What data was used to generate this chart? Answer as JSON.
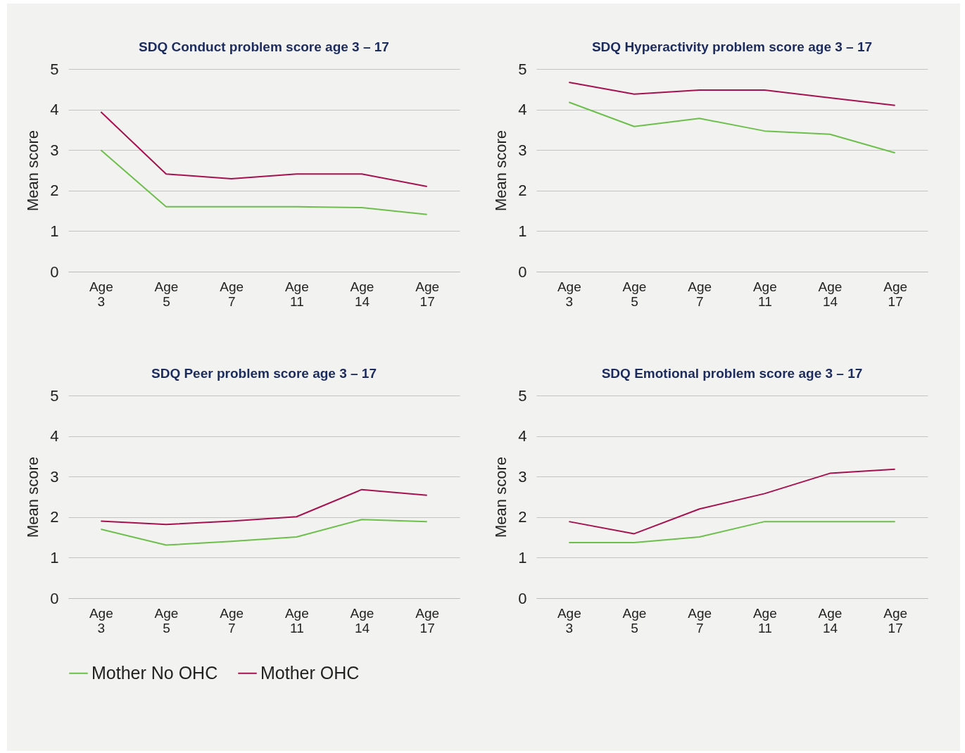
{
  "chart_data": [
    {
      "type": "line",
      "title": "SDQ Conduct problem score age 3 – 17",
      "ylabel": "Mean score",
      "categories": [
        "Age 3",
        "Age 5",
        "Age 7",
        "Age 11",
        "Age 14",
        "Age 17"
      ],
      "ylim": [
        0,
        5
      ],
      "yticks": [
        0,
        1,
        2,
        3,
        4,
        5
      ],
      "grid": "y",
      "legend": false,
      "series": [
        {
          "color": "#6dbf4b",
          "values": [
            3.0,
            1.6,
            1.6,
            1.6,
            1.58,
            1.41
          ]
        },
        {
          "color": "#a6124f",
          "values": [
            3.94,
            2.41,
            2.29,
            2.41,
            2.41,
            2.1
          ]
        }
      ]
    },
    {
      "type": "line",
      "title": "SDQ Hyperactivity problem score age 3 – 17",
      "ylabel": "Mean score",
      "categories": [
        "Age 3",
        "Age 5",
        "Age 7",
        "Age 11",
        "Age 14",
        "Age 17"
      ],
      "ylim": [
        0,
        5
      ],
      "yticks": [
        0,
        1,
        2,
        3,
        4,
        5
      ],
      "grid": "y",
      "legend": false,
      "series": [
        {
          "color": "#6dbf4b",
          "values": [
            4.18,
            3.58,
            3.78,
            3.47,
            3.39,
            2.93
          ]
        },
        {
          "color": "#a6124f",
          "values": [
            4.67,
            4.38,
            4.48,
            4.48,
            4.29,
            4.1
          ]
        }
      ]
    },
    {
      "type": "line",
      "title": "SDQ Peer problem score age 3 – 17",
      "ylabel": "Mean score",
      "categories": [
        "Age 3",
        "Age 5",
        "Age 7",
        "Age 11",
        "Age 14",
        "Age 17"
      ],
      "ylim": [
        0,
        5
      ],
      "yticks": [
        0,
        1,
        2,
        3,
        4,
        5
      ],
      "grid": "y",
      "legend": "bottom",
      "series": [
        {
          "name": "Mother No OHC",
          "color": "#6dbf4b",
          "values": [
            1.7,
            1.31,
            1.4,
            1.51,
            1.94,
            1.89
          ]
        },
        {
          "name": "Mother OHC",
          "color": "#a6124f",
          "values": [
            1.9,
            1.82,
            1.9,
            2.01,
            2.68,
            2.54
          ]
        }
      ]
    },
    {
      "type": "line",
      "title": "SDQ Emotional problem score age 3 – 17",
      "ylabel": "Mean score",
      "categories": [
        "Age 3",
        "Age 5",
        "Age 7",
        "Age 11",
        "Age 14",
        "Age 17"
      ],
      "ylim": [
        0,
        5
      ],
      "yticks": [
        0,
        1,
        2,
        3,
        4,
        5
      ],
      "grid": "y",
      "legend": false,
      "series": [
        {
          "color": "#6dbf4b",
          "values": [
            1.37,
            1.37,
            1.51,
            1.89,
            1.89,
            1.89
          ]
        },
        {
          "color": "#a6124f",
          "values": [
            1.89,
            1.59,
            2.2,
            2.58,
            3.08,
            3.18
          ]
        }
      ]
    }
  ]
}
